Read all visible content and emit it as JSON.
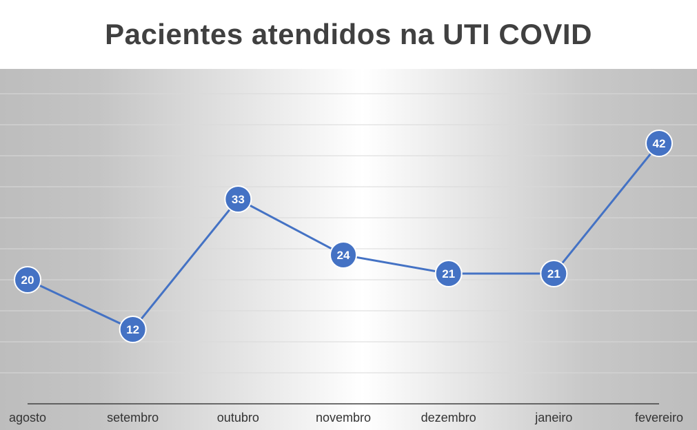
{
  "chart_data": {
    "type": "line",
    "title": "Pacientes atendidos na UTI COVID",
    "categories": [
      "agosto",
      "setembro",
      "outubro",
      "novembro",
      "dezembro",
      "janeiro",
      "fevereiro"
    ],
    "series": [
      {
        "values": [
          20,
          12,
          33,
          24,
          21,
          21,
          42
        ]
      }
    ],
    "data_labels": true,
    "ylim": [
      0,
      50
    ],
    "grid": true,
    "colors": {
      "line": "#4472C4",
      "marker_fill": "#4472C4",
      "marker_stroke": "#ffffff",
      "plot_background_edge": "#c0c0c0",
      "plot_background_center": "#ffffff",
      "axis": "#404040"
    }
  }
}
